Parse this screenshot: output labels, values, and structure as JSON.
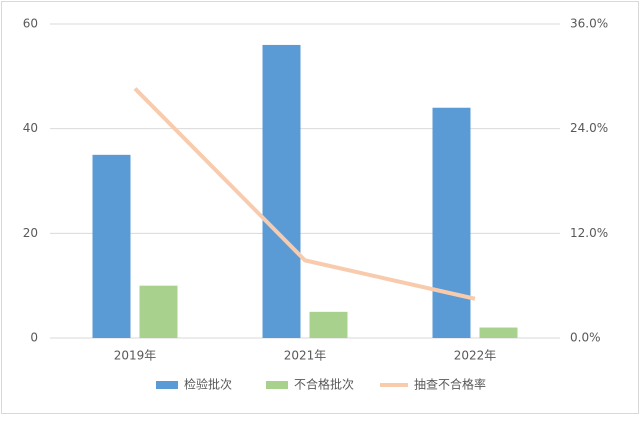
{
  "chart_data": {
    "type": "bar",
    "categories": [
      "2019年",
      "2021年",
      "2022年"
    ],
    "series": [
      {
        "name": "检验批次",
        "color": "#5b9bd5",
        "values": [
          35,
          56,
          44
        ]
      },
      {
        "name": "不合格批次",
        "color": "#a9d18e",
        "values": [
          10,
          5,
          2
        ]
      },
      {
        "name": "抽查不合格率",
        "color": "#f8cbad",
        "values": [
          28.6,
          8.9,
          4.5
        ],
        "axis": "y2",
        "type": "line"
      }
    ],
    "ylim": [
      0,
      60
    ],
    "yticks": [
      0,
      20,
      40,
      60
    ],
    "y2lim": [
      0,
      36
    ],
    "y2ticks": [
      {
        "value": 0,
        "label": "0.0%"
      },
      {
        "value": 12,
        "label": "12.0%"
      },
      {
        "value": 24,
        "label": "24.0%"
      },
      {
        "value": 36,
        "label": "36.0%"
      }
    ],
    "grid": true,
    "legend": "bottom"
  }
}
